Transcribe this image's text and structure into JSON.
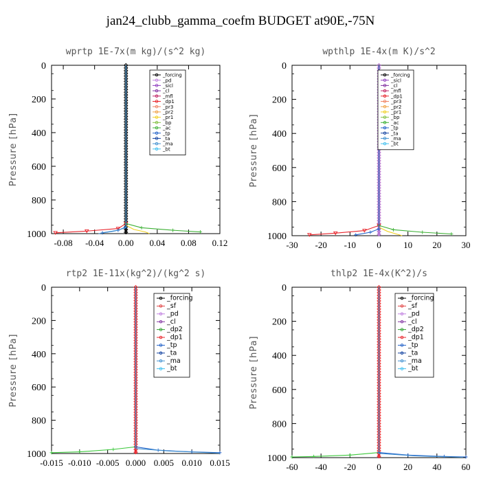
{
  "page_title": "jan24_clubb_gamma_coefm  BUDGET at90E,-75N",
  "chart_data": [
    {
      "type": "line",
      "title": "wprtp  1E-7x(m kg)/(s^2 kg)",
      "ylabel": "Pressure [hPa]",
      "xlim": [
        -0.095,
        0.12
      ],
      "ylim": [
        1000,
        0
      ],
      "xticks": [
        -0.08,
        -0.04,
        0.0,
        0.04,
        0.08,
        0.12
      ],
      "xtick_labels": [
        "-0.08",
        "-0.04",
        "0.00",
        "0.04",
        "0.08",
        "0.12"
      ],
      "yticks": [
        0,
        200,
        400,
        600,
        800,
        1000
      ],
      "legend": [
        "_forcing",
        "_pd",
        "_sicl",
        "_cl",
        "_mfl",
        "_dp1",
        "_pr3",
        "_pr2",
        "_pr1",
        "_bp",
        "_ac",
        "_tp",
        "_ta",
        "_ma",
        "_bt"
      ],
      "series": [
        {
          "name": "_forcing",
          "color": "#000000",
          "marker": "diamond",
          "x": [
            0,
            0,
            0,
            0,
            0,
            0
          ],
          "y": [
            0,
            200,
            400,
            600,
            800,
            1000
          ]
        },
        {
          "name": "_dp1",
          "color": "#e8232a",
          "marker": "triangle",
          "x": [
            0,
            0,
            -0.01,
            -0.05,
            -0.09
          ],
          "y": [
            0,
            940,
            970,
            985,
            995
          ]
        },
        {
          "name": "_ac",
          "color": "#3cb034",
          "marker": "cross",
          "x": [
            0,
            0,
            0.02,
            0.06,
            0.095
          ],
          "y": [
            0,
            940,
            965,
            980,
            990
          ]
        },
        {
          "name": "_pr1",
          "color": "#f0d020",
          "marker": "none",
          "x": [
            0,
            0,
            0.01,
            0.025,
            0.03
          ],
          "y": [
            0,
            950,
            975,
            990,
            1000
          ]
        },
        {
          "name": "_tp",
          "color": "#2060c8",
          "marker": "cross",
          "x": [
            0,
            0,
            -0.01,
            -0.03
          ],
          "y": [
            0,
            960,
            980,
            995
          ]
        },
        {
          "name": "_ma",
          "color": "#4090d0",
          "marker": "none",
          "x": [
            0,
            0,
            -0.015,
            -0.035
          ],
          "y": [
            0,
            965,
            985,
            1000
          ]
        }
      ]
    },
    {
      "type": "line",
      "title": "wpthlp  1E-4x(m K)/s^2",
      "ylabel": "Pressure [hPa]",
      "xlim": [
        -30,
        30
      ],
      "ylim": [
        1000,
        0
      ],
      "xticks": [
        -30,
        -20,
        -10,
        0,
        10,
        20,
        30
      ],
      "xtick_labels": [
        "-30",
        "-20",
        "-10",
        "0",
        "10",
        "20",
        "30"
      ],
      "yticks": [
        0,
        200,
        400,
        600,
        800,
        1000
      ],
      "legend": [
        "_forcing",
        "_sicl",
        "_cl",
        "_mfl",
        "_dp1",
        "_pr3",
        "_pr2",
        "_pr1",
        "_bp",
        "_ac",
        "_tp",
        "_ta",
        "_ma",
        "_bt"
      ],
      "series": [
        {
          "name": "_forcing",
          "color": "#b070d0",
          "marker": "diamond",
          "x": [
            0,
            0,
            0,
            0,
            0,
            0
          ],
          "y": [
            0,
            200,
            400,
            600,
            800,
            1000
          ]
        },
        {
          "name": "_dp1",
          "color": "#e8232a",
          "marker": "triangle",
          "x": [
            0,
            0,
            -5,
            -15,
            -24
          ],
          "y": [
            0,
            940,
            970,
            985,
            995
          ]
        },
        {
          "name": "_ac",
          "color": "#3cb034",
          "marker": "cross",
          "x": [
            0,
            0,
            5,
            15,
            25
          ],
          "y": [
            0,
            940,
            965,
            980,
            990
          ]
        },
        {
          "name": "_pr1",
          "color": "#f0d020",
          "marker": "none",
          "x": [
            0,
            0,
            3,
            6,
            8
          ],
          "y": [
            0,
            950,
            975,
            990,
            1000
          ]
        },
        {
          "name": "_tp",
          "color": "#2060c8",
          "marker": "cross",
          "x": [
            0,
            0,
            -3,
            -8
          ],
          "y": [
            0,
            960,
            980,
            995
          ]
        }
      ]
    },
    {
      "type": "line",
      "title": "rtp2  1E-11x(kg^2)/(kg^2 s)",
      "ylabel": "Pressure [hPa]",
      "xlim": [
        -0.015,
        0.015
      ],
      "ylim": [
        1000,
        0
      ],
      "xticks": [
        -0.015,
        -0.01,
        -0.005,
        0.0,
        0.005,
        0.01,
        0.015
      ],
      "xtick_labels": [
        "-0.015",
        "-0.010",
        "-0.005",
        "0.000",
        "0.005",
        "0.010",
        "0.015"
      ],
      "yticks": [
        0,
        200,
        400,
        600,
        800,
        1000
      ],
      "legend": [
        "_forcing",
        "_sf",
        "_pd",
        "_cl",
        "_dp2",
        "_dp1",
        "_tp",
        "_ta",
        "_ma",
        "_bt"
      ],
      "series": [
        {
          "name": "_forcing",
          "color": "#e8232a",
          "marker": "diamond",
          "x": [
            0,
            0,
            0,
            0,
            0,
            0
          ],
          "y": [
            0,
            200,
            400,
            600,
            800,
            1000
          ]
        },
        {
          "name": "_dp1",
          "color": "#3cc83c",
          "marker": "cross",
          "x": [
            0,
            0,
            -0.004,
            -0.01,
            -0.015
          ],
          "y": [
            0,
            960,
            975,
            990,
            995
          ]
        },
        {
          "name": "_tp",
          "color": "#2060c8",
          "marker": "cross",
          "x": [
            0,
            0,
            0.004,
            0.01,
            0.015
          ],
          "y": [
            0,
            960,
            980,
            990,
            995
          ]
        },
        {
          "name": "_ma",
          "color": "#4090d0",
          "marker": "none",
          "x": [
            0,
            0,
            0.006,
            0.015
          ],
          "y": [
            0,
            970,
            985,
            998
          ]
        }
      ]
    },
    {
      "type": "line",
      "title": "thlp2  1E-4x(K^2)/s",
      "ylabel": "Pressure [hPa]",
      "xlim": [
        -60,
        60
      ],
      "ylim": [
        1000,
        0
      ],
      "xticks": [
        -60,
        -40,
        -20,
        0,
        20,
        40,
        60
      ],
      "xtick_labels": [
        "-60",
        "-40",
        "-20",
        "0",
        "20",
        "40",
        "60"
      ],
      "yticks": [
        0,
        200,
        400,
        600,
        800,
        1000
      ],
      "legend": [
        "_forcing",
        "_sf",
        "_pd",
        "_cl",
        "_dp2",
        "_dp1",
        "_tp",
        "_ta",
        "_ma",
        "_bt"
      ],
      "series": [
        {
          "name": "_forcing",
          "color": "#e8232a",
          "marker": "diamond",
          "x": [
            0,
            0,
            0,
            0,
            0,
            0
          ],
          "y": [
            0,
            200,
            400,
            600,
            800,
            1000
          ]
        },
        {
          "name": "_dp1",
          "color": "#3cc83c",
          "marker": "cross",
          "x": [
            0,
            0,
            -20,
            -45,
            -60
          ],
          "y": [
            0,
            970,
            985,
            993,
            996
          ]
        },
        {
          "name": "_tp",
          "color": "#2060c8",
          "marker": "cross",
          "x": [
            0,
            0,
            20,
            45,
            60
          ],
          "y": [
            0,
            970,
            985,
            993,
            996
          ]
        },
        {
          "name": "_ma",
          "color": "#4090d0",
          "marker": "none",
          "x": [
            0,
            0,
            25,
            58
          ],
          "y": [
            0,
            975,
            990,
            998
          ]
        }
      ]
    }
  ],
  "legend_colors": {
    "_forcing": "#000000",
    "_pd": "#c080e0",
    "_sicl": "#9040c0",
    "_cl": "#8030a0",
    "_mfl": "#c02060",
    "_dp1": "#e8232a",
    "_pr3": "#f08060",
    "_pr2": "#f0a040",
    "_pr1": "#f0d020",
    "_bp": "#80c040",
    "_ac": "#3cb034",
    "_tp": "#2060c8",
    "_ta": "#1040a0",
    "_ma": "#4090d0",
    "_bt": "#40c0f0",
    "_sf": "#e04040",
    "_dp2": "#30a030"
  }
}
